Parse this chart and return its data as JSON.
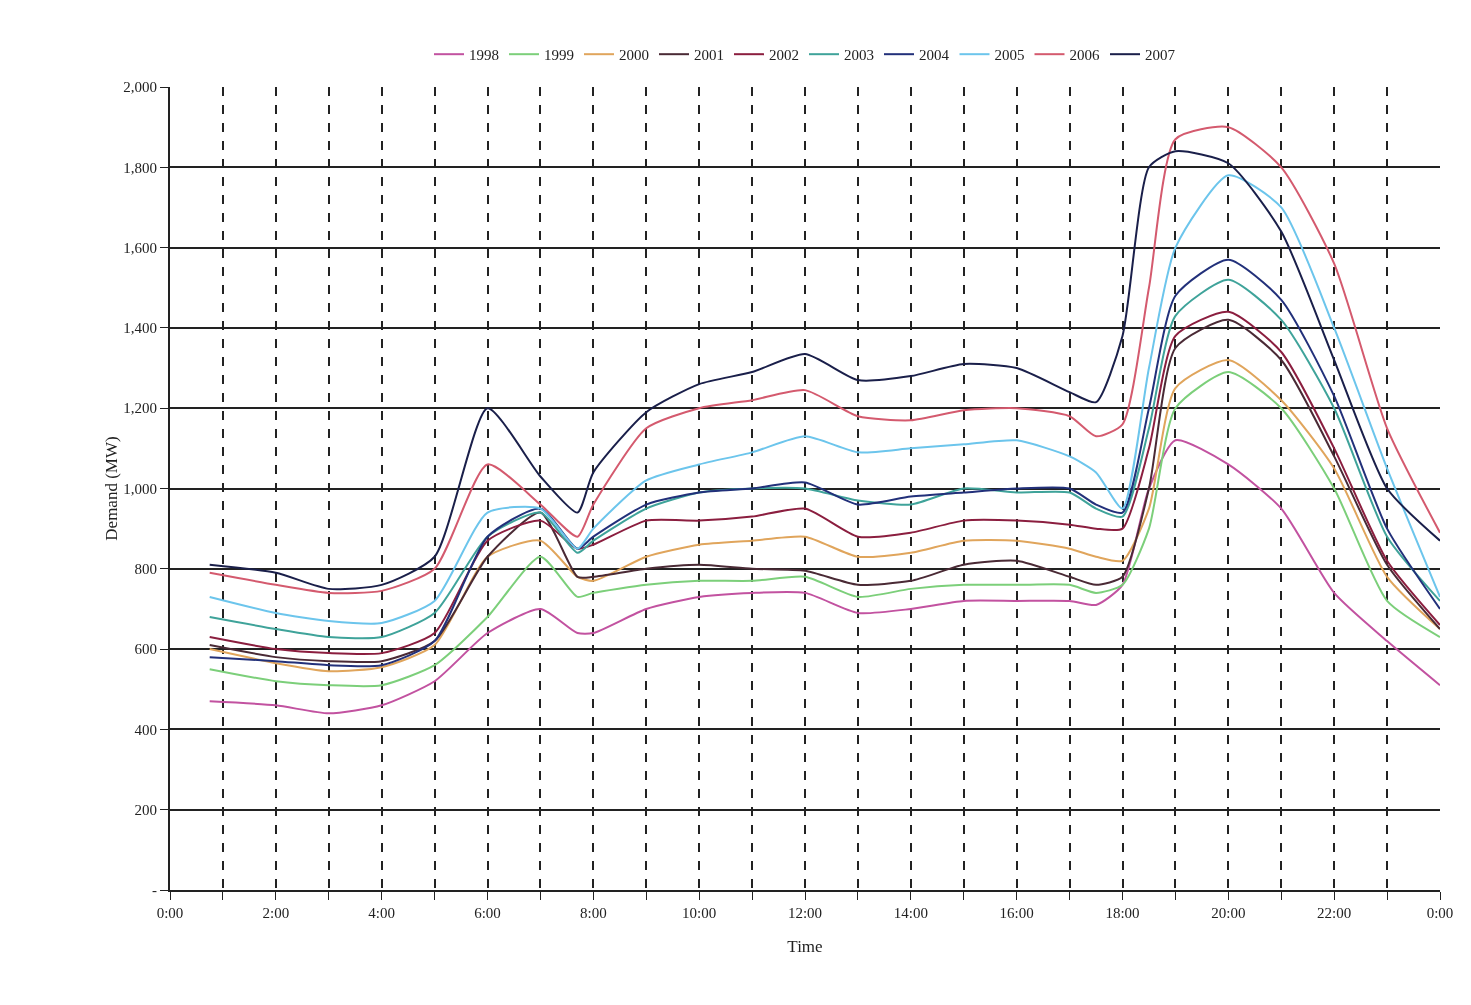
{
  "chart_data": {
    "type": "line",
    "xlabel": "Time",
    "ylabel": "Demand (MW)",
    "x": [
      0.75,
      2,
      3,
      4,
      5,
      6,
      7,
      7.7,
      8,
      9,
      10,
      11,
      12,
      13,
      14,
      15,
      16,
      17,
      17.5,
      18,
      18.5,
      19,
      20,
      21,
      22,
      23,
      24
    ],
    "series": [
      {
        "name": "1998",
        "color": "#c252a0",
        "values": [
          470,
          460,
          440,
          460,
          520,
          640,
          700,
          640,
          640,
          700,
          730,
          740,
          740,
          690,
          700,
          720,
          720,
          720,
          710,
          760,
          1000,
          1120,
          1060,
          950,
          740,
          620,
          510
        ]
      },
      {
        "name": "1999",
        "color": "#7ccf7a",
        "values": [
          550,
          520,
          510,
          510,
          560,
          680,
          830,
          730,
          740,
          760,
          770,
          770,
          780,
          730,
          750,
          760,
          760,
          760,
          740,
          760,
          900,
          1200,
          1290,
          1200,
          1000,
          720,
          630
        ]
      },
      {
        "name": "2000",
        "color": "#e0a55c",
        "values": [
          600,
          565,
          545,
          555,
          610,
          830,
          870,
          780,
          770,
          830,
          860,
          870,
          880,
          830,
          840,
          870,
          870,
          850,
          830,
          820,
          950,
          1250,
          1320,
          1220,
          1050,
          780,
          650
        ]
      },
      {
        "name": "2001",
        "color": "#4a2a35",
        "values": [
          610,
          580,
          570,
          570,
          620,
          830,
          940,
          780,
          780,
          800,
          810,
          800,
          795,
          760,
          770,
          810,
          820,
          780,
          760,
          780,
          1000,
          1350,
          1420,
          1320,
          1080,
          810,
          650
        ]
      },
      {
        "name": "2002",
        "color": "#8b1e3f",
        "values": [
          630,
          600,
          590,
          590,
          640,
          870,
          920,
          850,
          860,
          920,
          920,
          930,
          950,
          880,
          890,
          920,
          920,
          910,
          900,
          900,
          1100,
          1380,
          1440,
          1340,
          1100,
          820,
          660
        ]
      },
      {
        "name": "2003",
        "color": "#3fa39a",
        "values": [
          680,
          650,
          630,
          630,
          690,
          880,
          940,
          840,
          870,
          950,
          990,
          1000,
          1000,
          970,
          960,
          1000,
          990,
          990,
          950,
          930,
          1150,
          1430,
          1520,
          1420,
          1200,
          880,
          720
        ]
      },
      {
        "name": "2004",
        "color": "#22307a",
        "values": [
          580,
          570,
          560,
          560,
          620,
          880,
          950,
          850,
          880,
          960,
          990,
          1000,
          1015,
          960,
          980,
          990,
          1000,
          1000,
          960,
          940,
          1200,
          1480,
          1570,
          1470,
          1230,
          900,
          700
        ]
      },
      {
        "name": "2005",
        "color": "#6cc5ec",
        "values": [
          730,
          690,
          670,
          665,
          720,
          940,
          950,
          850,
          900,
          1020,
          1060,
          1090,
          1130,
          1090,
          1100,
          1110,
          1120,
          1080,
          1040,
          950,
          1300,
          1600,
          1780,
          1700,
          1400,
          1050,
          730
        ]
      },
      {
        "name": "2006",
        "color": "#d45a6e",
        "values": [
          790,
          760,
          740,
          745,
          800,
          1060,
          960,
          880,
          960,
          1150,
          1200,
          1220,
          1245,
          1180,
          1170,
          1195,
          1200,
          1180,
          1130,
          1160,
          1500,
          1870,
          1900,
          1800,
          1560,
          1150,
          890
        ]
      },
      {
        "name": "2007",
        "color": "#1a1f4a",
        "values": [
          810,
          790,
          750,
          760,
          830,
          1200,
          1030,
          940,
          1040,
          1190,
          1260,
          1290,
          1335,
          1270,
          1280,
          1310,
          1300,
          1240,
          1215,
          1380,
          1800,
          1840,
          1810,
          1640,
          1320,
          1000,
          870
        ]
      }
    ],
    "xlim": [
      0,
      24
    ],
    "xticks": [
      {
        "value": 0,
        "label": "0:00"
      },
      {
        "value": 1,
        "label": null
      },
      {
        "value": 2,
        "label": "2:00"
      },
      {
        "value": 3,
        "label": null
      },
      {
        "value": 4,
        "label": "4:00"
      },
      {
        "value": 5,
        "label": null
      },
      {
        "value": 6,
        "label": "6:00"
      },
      {
        "value": 7,
        "label": null
      },
      {
        "value": 8,
        "label": "8:00"
      },
      {
        "value": 9,
        "label": null
      },
      {
        "value": 10,
        "label": "10:00"
      },
      {
        "value": 11,
        "label": null
      },
      {
        "value": 12,
        "label": "12:00"
      },
      {
        "value": 13,
        "label": null
      },
      {
        "value": 14,
        "label": "14:00"
      },
      {
        "value": 15,
        "label": null
      },
      {
        "value": 16,
        "label": "16:00"
      },
      {
        "value": 17,
        "label": null
      },
      {
        "value": 18,
        "label": "18:00"
      },
      {
        "value": 19,
        "label": null
      },
      {
        "value": 20,
        "label": "20:00"
      },
      {
        "value": 21,
        "label": null
      },
      {
        "value": 22,
        "label": "22:00"
      },
      {
        "value": 23,
        "label": null
      },
      {
        "value": 24,
        "label": "0:00"
      }
    ],
    "ylim": [
      0,
      2000
    ],
    "yticks": [
      {
        "value": 0,
        "label": "-"
      },
      200,
      400,
      600,
      800,
      {
        "value": 1000,
        "label": "1,000"
      },
      {
        "value": 1200,
        "label": "1,200"
      },
      {
        "value": 1400,
        "label": "1,400"
      },
      {
        "value": 1600,
        "label": "1,600"
      },
      {
        "value": 1800,
        "label": "1,800"
      },
      {
        "value": 2000,
        "label": "2,000"
      }
    ],
    "grid": true,
    "legend": "top",
    "marker": "none",
    "line_style": "solid"
  }
}
